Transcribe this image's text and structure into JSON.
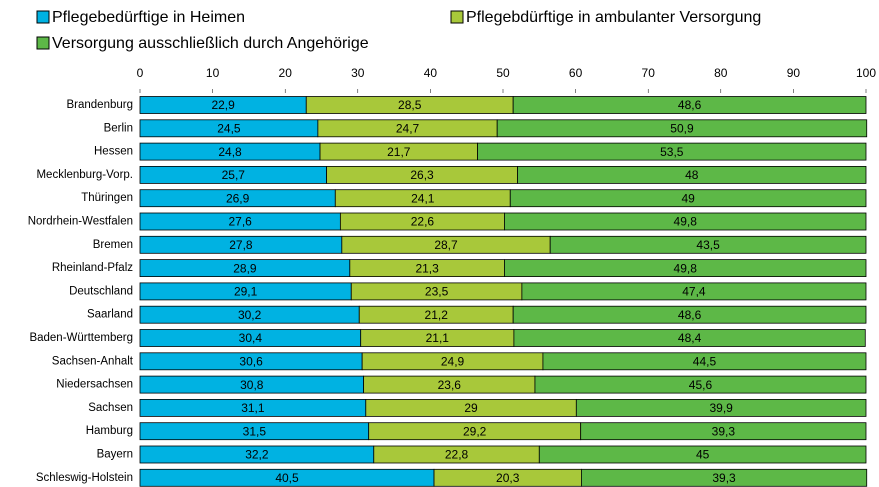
{
  "chart_data": {
    "type": "stacked-bar-horizontal",
    "categories": [
      "Brandenburg",
      "Berlin",
      "Hessen",
      "Mecklenburg-Vorp.",
      "Thüringen",
      "Nordrhein-Westfalen",
      "Bremen",
      "Rheinland-Pfalz",
      "Deutschland",
      "Saarland",
      "Baden-Württemberg",
      "Sachsen-Anhalt",
      "Niedersachsen",
      "Sachsen",
      "Hamburg",
      "Bayern",
      "Schleswig-Holstein"
    ],
    "series": [
      {
        "name": "Pflegebedürftige in Heimen",
        "color": "#00b2e2",
        "values": [
          22.9,
          24.5,
          24.8,
          25.7,
          26.9,
          27.6,
          27.8,
          28.9,
          29.1,
          30.2,
          30.4,
          30.6,
          30.8,
          31.1,
          31.5,
          32.2,
          40.5
        ],
        "value_labels": [
          "22,9",
          "24,5",
          "24,8",
          "25,7",
          "26,9",
          "27,6",
          "27,8",
          "28,9",
          "29,1",
          "30,2",
          "30,4",
          "30,6",
          "30,8",
          "31,1",
          "31,5",
          "32,2",
          "40,5"
        ]
      },
      {
        "name": "Pflegebdürftige in ambulanter Versorgung",
        "color": "#a8c83a",
        "values": [
          28.5,
          24.7,
          21.7,
          26.3,
          24.1,
          22.6,
          28.7,
          21.3,
          23.5,
          21.2,
          21.1,
          24.9,
          23.6,
          29,
          29.2,
          22.8,
          20.3
        ],
        "value_labels": [
          "28,5",
          "24,7",
          "21,7",
          "26,3",
          "24,1",
          "22,6",
          "28,7",
          "21,3",
          "23,5",
          "21,2",
          "21,1",
          "24,9",
          "23,6",
          "29",
          "29,2",
          "22,8",
          "20,3"
        ]
      },
      {
        "name": "Versorgung ausschließlich durch Angehörige",
        "color": "#5db847",
        "values": [
          48.6,
          50.9,
          53.5,
          48,
          49,
          49.8,
          43.5,
          49.8,
          47.4,
          48.6,
          48.4,
          44.5,
          45.6,
          39.9,
          39.3,
          45,
          39.3
        ],
        "value_labels": [
          "48,6",
          "50,9",
          "53,5",
          "48",
          "49",
          "49,8",
          "43,5",
          "49,8",
          "47,4",
          "48,6",
          "48,4",
          "44,5",
          "45,6",
          "39,9",
          "39,3",
          "45",
          "39,3"
        ]
      }
    ],
    "xlim": [
      0,
      100
    ],
    "xticks": [
      0,
      10,
      20,
      30,
      40,
      50,
      60,
      70,
      80,
      90,
      100
    ],
    "grid": false
  }
}
